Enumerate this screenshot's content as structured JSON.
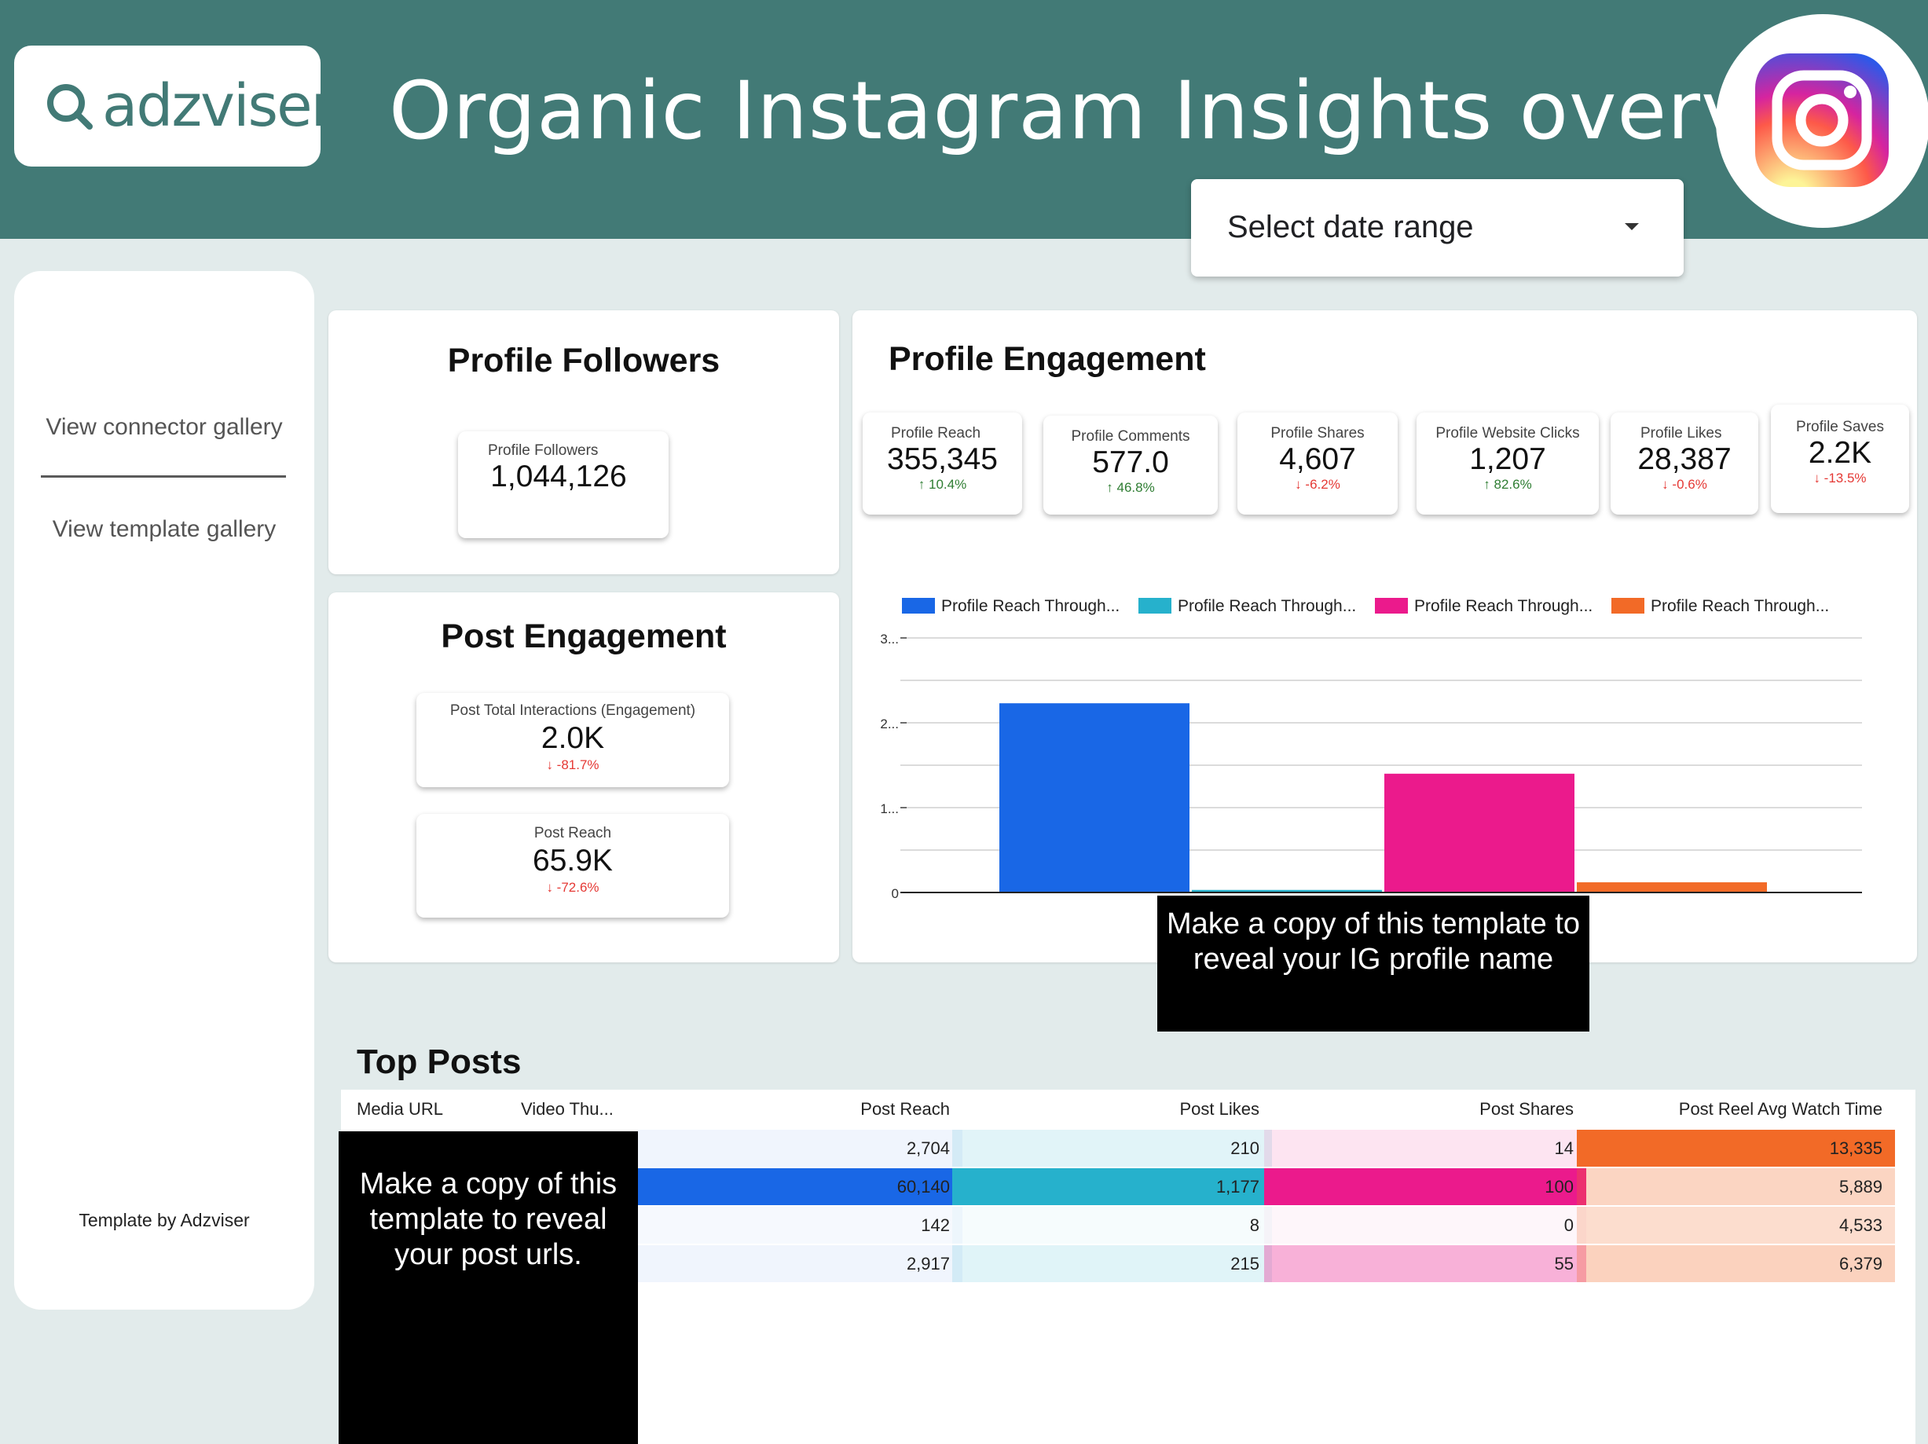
{
  "header": {
    "logo_text": "adzviser",
    "title": "Organic Instagram Insights overview",
    "date_selector": "Select date range"
  },
  "sidebar": {
    "links": [
      "View connector gallery",
      "View template gallery"
    ],
    "credit": "Template by Adzviser"
  },
  "profile_followers": {
    "title": "Profile Followers",
    "kpi": {
      "label": "Profile Followers",
      "value": "1,044,126"
    }
  },
  "post_engagement": {
    "title": "Post Engagement",
    "kpis": [
      {
        "label": "Post Total Interactions (Engagement)",
        "value": "2.0K",
        "delta": "-81.7%",
        "direction": "down"
      },
      {
        "label": "Post Reach",
        "value": "65.9K",
        "delta": "-72.6%",
        "direction": "down"
      }
    ]
  },
  "profile_engagement": {
    "title": "Profile Engagement",
    "kpis": [
      {
        "label": "Profile Reach",
        "value": "355,345",
        "delta": "10.4%",
        "direction": "up"
      },
      {
        "label": "Profile Comments",
        "value": "577.0",
        "delta": "46.8%",
        "direction": "up"
      },
      {
        "label": "Profile Shares",
        "value": "4,607",
        "delta": "-6.2%",
        "direction": "down"
      },
      {
        "label": "Profile Website Clicks",
        "value": "1,207",
        "delta": "82.6%",
        "direction": "up"
      },
      {
        "label": "Profile Likes",
        "value": "28,387",
        "delta": "-0.6%",
        "direction": "down"
      },
      {
        "label": "Profile Saves",
        "value": "2.2K",
        "delta": "-13.5%",
        "direction": "down"
      }
    ],
    "overlay": "Make a copy of this template to reveal your IG profile name"
  },
  "chart_data": {
    "type": "bar",
    "categories": [
      ""
    ],
    "series": [
      {
        "name": "Profile Reach Through...",
        "values": [
          2.23
        ],
        "color": "#1967e6"
      },
      {
        "name": "Profile Reach Through...",
        "values": [
          0.03
        ],
        "color": "#26b1cc"
      },
      {
        "name": "Profile Reach Through...",
        "values": [
          1.4
        ],
        "color": "#eb1a8c"
      },
      {
        "name": "Profile Reach Through...",
        "values": [
          0.12
        ],
        "color": "#f26a27"
      }
    ],
    "y_ticks": [
      "0",
      "1...",
      "2...",
      "3..."
    ],
    "ylim": [
      0,
      3
    ],
    "grid": true,
    "legend_position": "top"
  },
  "top_posts": {
    "title": "Top Posts",
    "columns": [
      "Media URL",
      "Video Thu...",
      "Post Reach",
      "Post Likes",
      "Post Shares",
      "Post Reel Avg Watch Time"
    ],
    "rows": [
      {
        "reach": "2,704",
        "likes": "210",
        "shares": "14",
        "watch": "13,335"
      },
      {
        "reach": "60,140",
        "likes": "1,177",
        "shares": "100",
        "watch": "5,889"
      },
      {
        "reach": "142",
        "likes": "8",
        "shares": "0",
        "watch": "4,533"
      },
      {
        "reach": "2,917",
        "likes": "215",
        "shares": "55",
        "watch": "6,379"
      }
    ],
    "overlay": "Make a copy of this template to reveal your post urls."
  },
  "colors": {
    "header": "#427a76",
    "background": "#e2ebeb",
    "reach": "#1967e6",
    "likes": "#26b1cc",
    "shares": "#eb1a8c",
    "watch": "#f26a27",
    "positive": "#2e7d32",
    "negative": "#e53935"
  }
}
